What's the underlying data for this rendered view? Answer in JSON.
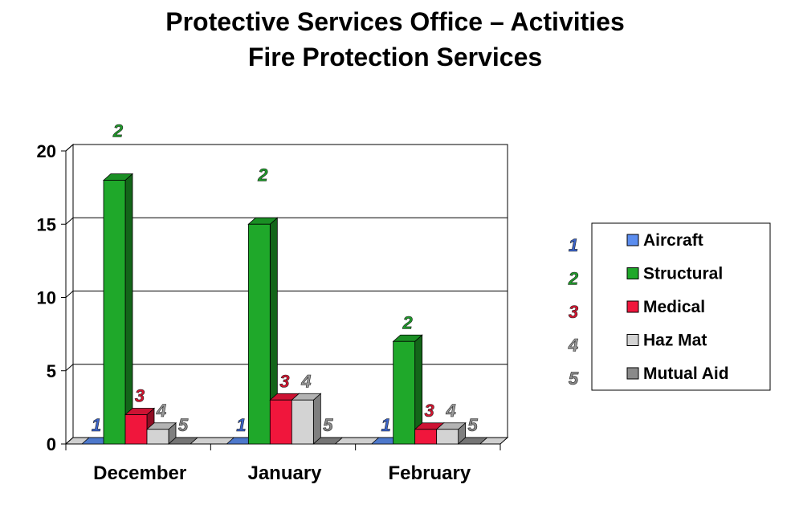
{
  "chart_data": {
    "type": "bar",
    "title": "Protective Services Office – Activities",
    "subtitle": "Fire Protection Services",
    "categories": [
      "December",
      "January",
      "February"
    ],
    "yticks": [
      "0",
      "5",
      "10",
      "15",
      "20"
    ],
    "ylim": [
      0,
      20
    ],
    "grid": true,
    "legend_position": "right",
    "series": [
      {
        "name": "Aircraft",
        "label": "1",
        "color": "#5b8def",
        "label_color": "#3a63c9",
        "values": [
          0,
          0,
          0
        ]
      },
      {
        "name": "Structural",
        "label": "2",
        "color": "#1fa82a",
        "label_color": "#1f9a2a",
        "values": [
          18,
          15,
          7
        ]
      },
      {
        "name": "Medical",
        "label": "3",
        "color": "#f0163c",
        "label_color": "#d4142f",
        "values": [
          2,
          3,
          1
        ]
      },
      {
        "name": "Haz Mat",
        "label": "4",
        "color": "#d3d3d3",
        "label_color": "#9a9a9a",
        "values": [
          1,
          3,
          1
        ]
      },
      {
        "name": "Mutual Aid",
        "label": "5",
        "color": "#8a8a8a",
        "label_color": "#8a8a8a",
        "values": [
          0,
          0,
          0
        ]
      }
    ]
  }
}
